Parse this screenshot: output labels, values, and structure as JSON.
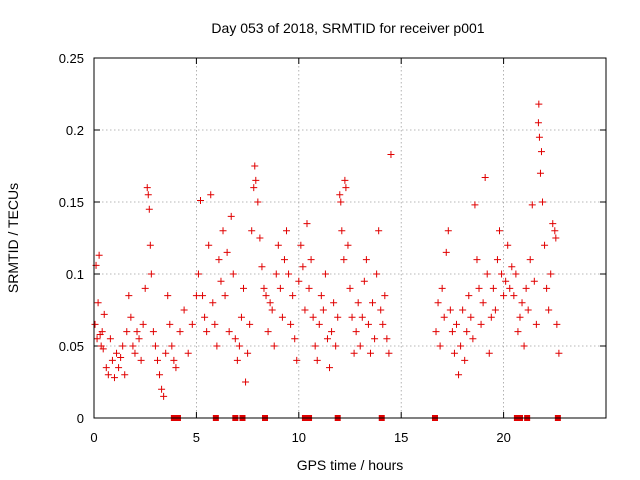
{
  "colors": {
    "series": "#e00000",
    "grid": "#a0a0a0",
    "axis": "#000000"
  },
  "chart_data": {
    "type": "scatter",
    "title": "Day 053 of 2018, SRMTID for receiver p001",
    "xlabel": "GPS time / hours",
    "ylabel": "SRMTID / TECUs",
    "xlim": [
      0,
      25
    ],
    "ylim": [
      0,
      0.25
    ],
    "xticks": [
      0,
      5,
      10,
      15,
      20
    ],
    "yticks": [
      0,
      0.05,
      0.1,
      0.15,
      0.2,
      0.25
    ],
    "xtick_labels": [
      "0",
      "5",
      "10",
      "15",
      "20"
    ],
    "ytick_labels": [
      "0",
      "0.05",
      "0.1",
      "0.15",
      "0.2",
      "0.25"
    ],
    "grid": true,
    "marker": "plus",
    "series": [
      {
        "name": "SRMTID",
        "points": [
          [
            0.05,
            0.065
          ],
          [
            0.1,
            0.106
          ],
          [
            0.15,
            0.055
          ],
          [
            0.2,
            0.08
          ],
          [
            0.25,
            0.113
          ],
          [
            0.3,
            0.058
          ],
          [
            0.35,
            0.05
          ],
          [
            0.4,
            0.06
          ],
          [
            0.45,
            0.048
          ],
          [
            0.5,
            0.072
          ],
          [
            0.6,
            0.035
          ],
          [
            0.7,
            0.03
          ],
          [
            0.8,
            0.055
          ],
          [
            0.9,
            0.04
          ],
          [
            1.0,
            0.028
          ],
          [
            1.1,
            0.045
          ],
          [
            1.2,
            0.035
          ],
          [
            1.3,
            0.042
          ],
          [
            1.4,
            0.05
          ],
          [
            1.5,
            0.03
          ],
          [
            1.6,
            0.06
          ],
          [
            1.7,
            0.085
          ],
          [
            1.8,
            0.07
          ],
          [
            1.9,
            0.05
          ],
          [
            2.0,
            0.045
          ],
          [
            2.1,
            0.06
          ],
          [
            2.2,
            0.055
          ],
          [
            2.3,
            0.04
          ],
          [
            2.4,
            0.065
          ],
          [
            2.5,
            0.09
          ],
          [
            2.6,
            0.16
          ],
          [
            2.65,
            0.155
          ],
          [
            2.7,
            0.145
          ],
          [
            2.75,
            0.12
          ],
          [
            2.8,
            0.1
          ],
          [
            2.9,
            0.06
          ],
          [
            3.0,
            0.05
          ],
          [
            3.1,
            0.04
          ],
          [
            3.2,
            0.03
          ],
          [
            3.3,
            0.02
          ],
          [
            3.4,
            0.015
          ],
          [
            3.5,
            0.045
          ],
          [
            3.6,
            0.085
          ],
          [
            3.7,
            0.065
          ],
          [
            3.8,
            0.05
          ],
          [
            3.9,
            0.04
          ],
          [
            4.0,
            0.035
          ],
          [
            4.2,
            0.06
          ],
          [
            4.4,
            0.075
          ],
          [
            4.6,
            0.045
          ],
          [
            4.8,
            0.065
          ],
          [
            5.0,
            0.085
          ],
          [
            5.1,
            0.1
          ],
          [
            5.2,
            0.151
          ],
          [
            5.3,
            0.085
          ],
          [
            5.4,
            0.07
          ],
          [
            5.5,
            0.06
          ],
          [
            5.6,
            0.12
          ],
          [
            5.7,
            0.155
          ],
          [
            5.8,
            0.08
          ],
          [
            5.9,
            0.065
          ],
          [
            6.0,
            0.05
          ],
          [
            6.1,
            0.11
          ],
          [
            6.2,
            0.095
          ],
          [
            6.3,
            0.13
          ],
          [
            6.4,
            0.085
          ],
          [
            6.5,
            0.115
          ],
          [
            6.6,
            0.06
          ],
          [
            6.7,
            0.14
          ],
          [
            6.8,
            0.1
          ],
          [
            6.9,
            0.055
          ],
          [
            7.0,
            0.04
          ],
          [
            7.1,
            0.05
          ],
          [
            7.2,
            0.07
          ],
          [
            7.3,
            0.09
          ],
          [
            7.4,
            0.025
          ],
          [
            7.5,
            0.045
          ],
          [
            7.6,
            0.065
          ],
          [
            7.7,
            0.13
          ],
          [
            7.8,
            0.16
          ],
          [
            7.85,
            0.175
          ],
          [
            7.9,
            0.165
          ],
          [
            8.0,
            0.15
          ],
          [
            8.1,
            0.125
          ],
          [
            8.2,
            0.105
          ],
          [
            8.3,
            0.09
          ],
          [
            8.4,
            0.085
          ],
          [
            8.5,
            0.06
          ],
          [
            8.6,
            0.08
          ],
          [
            8.7,
            0.075
          ],
          [
            8.8,
            0.05
          ],
          [
            8.9,
            0.1
          ],
          [
            9.0,
            0.12
          ],
          [
            9.1,
            0.09
          ],
          [
            9.2,
            0.07
          ],
          [
            9.3,
            0.11
          ],
          [
            9.4,
            0.13
          ],
          [
            9.5,
            0.1
          ],
          [
            9.6,
            0.065
          ],
          [
            9.7,
            0.085
          ],
          [
            9.8,
            0.055
          ],
          [
            9.9,
            0.04
          ],
          [
            10.0,
            0.095
          ],
          [
            10.1,
            0.12
          ],
          [
            10.2,
            0.105
          ],
          [
            10.3,
            0.075
          ],
          [
            10.4,
            0.135
          ],
          [
            10.5,
            0.09
          ],
          [
            10.6,
            0.11
          ],
          [
            10.7,
            0.07
          ],
          [
            10.8,
            0.05
          ],
          [
            10.9,
            0.04
          ],
          [
            11.0,
            0.065
          ],
          [
            11.1,
            0.085
          ],
          [
            11.2,
            0.075
          ],
          [
            11.3,
            0.1
          ],
          [
            11.4,
            0.055
          ],
          [
            11.5,
            0.035
          ],
          [
            11.6,
            0.06
          ],
          [
            11.7,
            0.08
          ],
          [
            11.8,
            0.05
          ],
          [
            11.9,
            0.07
          ],
          [
            12.0,
            0.155
          ],
          [
            12.05,
            0.15
          ],
          [
            12.1,
            0.13
          ],
          [
            12.2,
            0.11
          ],
          [
            12.25,
            0.165
          ],
          [
            12.3,
            0.16
          ],
          [
            12.4,
            0.12
          ],
          [
            12.5,
            0.09
          ],
          [
            12.6,
            0.07
          ],
          [
            12.7,
            0.045
          ],
          [
            12.8,
            0.06
          ],
          [
            12.9,
            0.08
          ],
          [
            13.0,
            0.05
          ],
          [
            13.1,
            0.07
          ],
          [
            13.2,
            0.095
          ],
          [
            13.3,
            0.11
          ],
          [
            13.4,
            0.065
          ],
          [
            13.5,
            0.045
          ],
          [
            13.6,
            0.08
          ],
          [
            13.7,
            0.055
          ],
          [
            13.8,
            0.1
          ],
          [
            13.9,
            0.13
          ],
          [
            14.0,
            0.075
          ],
          [
            14.1,
            0.065
          ],
          [
            14.2,
            0.085
          ],
          [
            14.3,
            0.055
          ],
          [
            14.4,
            0.045
          ],
          [
            14.5,
            0.183
          ],
          [
            16.7,
            0.06
          ],
          [
            16.8,
            0.08
          ],
          [
            16.9,
            0.05
          ],
          [
            17.0,
            0.09
          ],
          [
            17.1,
            0.07
          ],
          [
            17.2,
            0.115
          ],
          [
            17.3,
            0.13
          ],
          [
            17.4,
            0.075
          ],
          [
            17.5,
            0.06
          ],
          [
            17.6,
            0.045
          ],
          [
            17.7,
            0.065
          ],
          [
            17.8,
            0.03
          ],
          [
            17.9,
            0.05
          ],
          [
            18.0,
            0.075
          ],
          [
            18.1,
            0.04
          ],
          [
            18.2,
            0.06
          ],
          [
            18.3,
            0.085
          ],
          [
            18.4,
            0.07
          ],
          [
            18.5,
            0.055
          ],
          [
            18.6,
            0.148
          ],
          [
            18.7,
            0.11
          ],
          [
            18.8,
            0.09
          ],
          [
            18.9,
            0.065
          ],
          [
            19.0,
            0.08
          ],
          [
            19.1,
            0.167
          ],
          [
            19.2,
            0.1
          ],
          [
            19.3,
            0.045
          ],
          [
            19.4,
            0.07
          ],
          [
            19.5,
            0.09
          ],
          [
            19.6,
            0.075
          ],
          [
            19.7,
            0.11
          ],
          [
            19.8,
            0.13
          ],
          [
            19.9,
            0.1
          ],
          [
            20.0,
            0.085
          ],
          [
            20.1,
            0.095
          ],
          [
            20.2,
            0.12
          ],
          [
            20.3,
            0.09
          ],
          [
            20.4,
            0.105
          ],
          [
            20.5,
            0.085
          ],
          [
            20.6,
            0.1
          ],
          [
            20.7,
            0.06
          ],
          [
            20.8,
            0.07
          ],
          [
            20.9,
            0.08
          ],
          [
            21.0,
            0.05
          ],
          [
            21.1,
            0.09
          ],
          [
            21.2,
            0.075
          ],
          [
            21.3,
            0.11
          ],
          [
            21.4,
            0.148
          ],
          [
            21.5,
            0.095
          ],
          [
            21.6,
            0.065
          ],
          [
            21.7,
            0.205
          ],
          [
            21.72,
            0.218
          ],
          [
            21.75,
            0.195
          ],
          [
            21.8,
            0.17
          ],
          [
            21.85,
            0.185
          ],
          [
            21.9,
            0.15
          ],
          [
            22.0,
            0.12
          ],
          [
            22.1,
            0.09
          ],
          [
            22.2,
            0.075
          ],
          [
            22.3,
            0.1
          ],
          [
            22.4,
            0.135
          ],
          [
            22.5,
            0.13
          ],
          [
            22.55,
            0.125
          ],
          [
            22.6,
            0.065
          ],
          [
            22.7,
            0.045
          ]
        ]
      }
    ],
    "gap_markers_x": [
      3.9,
      4.1,
      5.95,
      6.9,
      7.25,
      8.35,
      10.3,
      10.5,
      11.9,
      14.05,
      16.65,
      20.65,
      20.8,
      21.15,
      22.65
    ]
  }
}
